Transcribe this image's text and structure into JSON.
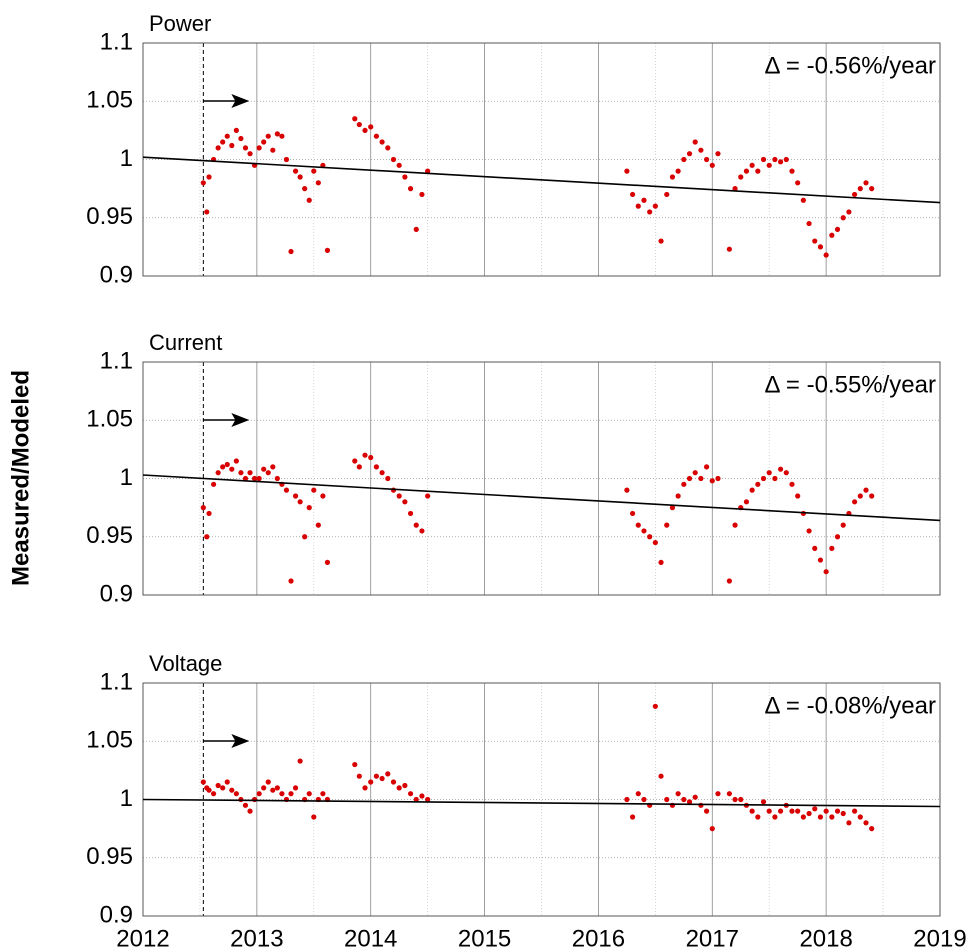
{
  "ylabel": "Measured/Modeled",
  "chart_data": [
    {
      "type": "scatter",
      "title": "Power",
      "annotation": "Δ = -0.56%/year",
      "color": "#d80000",
      "xlim": [
        2012,
        2019
      ],
      "xticks": [
        2012,
        2013,
        2014,
        2015,
        2016,
        2017,
        2018,
        2019
      ],
      "xminor": [
        2012.5,
        2013.5,
        2014.5,
        2015.5,
        2016.5,
        2017.5,
        2018.5
      ],
      "ylim": [
        0.9,
        1.1
      ],
      "yticks": [
        0.9,
        0.95,
        1,
        1.05,
        1.1
      ],
      "grid": true,
      "vline": 2012.53,
      "trend": {
        "color": "#000000",
        "x": [
          2012,
          2019
        ],
        "values": [
          1.002,
          0.963
        ]
      },
      "x": [
        2012.53,
        2012.56,
        2012.58,
        2012.62,
        2012.66,
        2012.7,
        2012.74,
        2012.78,
        2012.82,
        2012.86,
        2012.9,
        2012.94,
        2012.98,
        2013.02,
        2013.06,
        2013.1,
        2013.14,
        2013.18,
        2013.22,
        2013.26,
        2013.3,
        2013.34,
        2013.38,
        2013.42,
        2013.46,
        2013.5,
        2013.54,
        2013.58,
        2013.62,
        2013.86,
        2013.9,
        2013.95,
        2014.0,
        2014.05,
        2014.1,
        2014.15,
        2014.2,
        2014.25,
        2014.3,
        2014.35,
        2014.4,
        2014.45,
        2014.5,
        2016.25,
        2016.3,
        2016.35,
        2016.4,
        2016.45,
        2016.5,
        2016.55,
        2016.6,
        2016.65,
        2016.7,
        2016.75,
        2016.8,
        2016.85,
        2016.9,
        2016.95,
        2017.0,
        2017.05,
        2017.15,
        2017.2,
        2017.25,
        2017.3,
        2017.35,
        2017.4,
        2017.45,
        2017.5,
        2017.55,
        2017.6,
        2017.65,
        2017.7,
        2017.75,
        2017.8,
        2017.85,
        2017.9,
        2017.95,
        2018.0,
        2018.05,
        2018.1,
        2018.15,
        2018.2,
        2018.25,
        2018.3,
        2018.35,
        2018.4
      ],
      "values": [
        0.98,
        0.955,
        0.985,
        1.0,
        1.01,
        1.015,
        1.02,
        1.012,
        1.025,
        1.018,
        1.01,
        1.005,
        0.995,
        1.01,
        1.015,
        1.02,
        1.008,
        1.022,
        1.02,
        1.0,
        0.921,
        0.99,
        0.985,
        0.975,
        0.965,
        0.99,
        0.98,
        0.995,
        0.922,
        1.035,
        1.03,
        1.025,
        1.028,
        1.02,
        1.015,
        1.01,
        1.0,
        0.995,
        0.985,
        0.975,
        0.94,
        0.97,
        0.99,
        0.99,
        0.97,
        0.96,
        0.965,
        0.955,
        0.96,
        0.93,
        0.97,
        0.985,
        0.99,
        1.0,
        1.005,
        1.015,
        1.008,
        1.0,
        0.995,
        1.005,
        0.923,
        0.975,
        0.985,
        0.99,
        0.995,
        0.99,
        1.0,
        0.995,
        1.0,
        0.998,
        1.0,
        0.99,
        0.98,
        0.965,
        0.945,
        0.93,
        0.925,
        0.918,
        0.935,
        0.94,
        0.95,
        0.955,
        0.97,
        0.975,
        0.98,
        0.975
      ]
    },
    {
      "type": "scatter",
      "title": "Current",
      "annotation": "Δ = -0.55%/year",
      "color": "#d80000",
      "xlim": [
        2012,
        2019
      ],
      "xticks": [
        2012,
        2013,
        2014,
        2015,
        2016,
        2017,
        2018,
        2019
      ],
      "xminor": [
        2012.5,
        2013.5,
        2014.5,
        2015.5,
        2016.5,
        2017.5,
        2018.5
      ],
      "ylim": [
        0.9,
        1.1
      ],
      "yticks": [
        0.9,
        0.95,
        1,
        1.05,
        1.1
      ],
      "grid": true,
      "vline": 2012.53,
      "trend": {
        "color": "#000000",
        "x": [
          2012,
          2019
        ],
        "values": [
          1.003,
          0.964
        ]
      },
      "x": [
        2012.53,
        2012.56,
        2012.58,
        2012.62,
        2012.66,
        2012.7,
        2012.74,
        2012.78,
        2012.82,
        2012.86,
        2012.9,
        2012.94,
        2012.98,
        2013.02,
        2013.06,
        2013.1,
        2013.14,
        2013.18,
        2013.22,
        2013.26,
        2013.3,
        2013.34,
        2013.38,
        2013.42,
        2013.46,
        2013.5,
        2013.54,
        2013.58,
        2013.62,
        2013.86,
        2013.9,
        2013.95,
        2014.0,
        2014.05,
        2014.1,
        2014.15,
        2014.2,
        2014.25,
        2014.3,
        2014.35,
        2014.4,
        2014.45,
        2014.5,
        2016.25,
        2016.3,
        2016.35,
        2016.4,
        2016.45,
        2016.5,
        2016.55,
        2016.6,
        2016.65,
        2016.7,
        2016.75,
        2016.8,
        2016.85,
        2016.9,
        2016.95,
        2017.0,
        2017.05,
        2017.15,
        2017.2,
        2017.25,
        2017.3,
        2017.35,
        2017.4,
        2017.45,
        2017.5,
        2017.55,
        2017.6,
        2017.65,
        2017.7,
        2017.75,
        2017.8,
        2017.85,
        2017.9,
        2017.95,
        2018.0,
        2018.05,
        2018.1,
        2018.15,
        2018.2,
        2018.25,
        2018.3,
        2018.35,
        2018.4
      ],
      "values": [
        0.975,
        0.95,
        0.97,
        0.995,
        1.005,
        1.01,
        1.012,
        1.008,
        1.015,
        1.005,
        1.0,
        1.005,
        1.0,
        1.0,
        1.008,
        1.005,
        1.01,
        1.0,
        0.995,
        0.99,
        0.912,
        0.985,
        0.98,
        0.95,
        0.975,
        0.99,
        0.96,
        0.985,
        0.928,
        1.015,
        1.01,
        1.02,
        1.018,
        1.01,
        1.005,
        1.0,
        0.99,
        0.985,
        0.98,
        0.97,
        0.96,
        0.955,
        0.985,
        0.99,
        0.97,
        0.96,
        0.955,
        0.95,
        0.945,
        0.928,
        0.96,
        0.975,
        0.985,
        0.995,
        1.0,
        1.005,
        1.0,
        1.01,
        0.998,
        1.0,
        0.912,
        0.96,
        0.975,
        0.98,
        0.99,
        0.995,
        1.0,
        1.005,
        1.0,
        1.008,
        1.005,
        0.995,
        0.985,
        0.97,
        0.955,
        0.94,
        0.93,
        0.92,
        0.94,
        0.95,
        0.96,
        0.97,
        0.98,
        0.985,
        0.99,
        0.985
      ]
    },
    {
      "type": "scatter",
      "title": "Voltage",
      "annotation": "Δ = -0.08%/year",
      "color": "#d80000",
      "xlim": [
        2012,
        2019
      ],
      "xticks": [
        2012,
        2013,
        2014,
        2015,
        2016,
        2017,
        2018,
        2019
      ],
      "xminor": [
        2012.5,
        2013.5,
        2014.5,
        2015.5,
        2016.5,
        2017.5,
        2018.5
      ],
      "ylim": [
        0.9,
        1.1
      ],
      "yticks": [
        0.9,
        0.95,
        1,
        1.05,
        1.1
      ],
      "grid": true,
      "vline": 2012.53,
      "trend": {
        "color": "#000000",
        "x": [
          2012,
          2019
        ],
        "values": [
          1.0,
          0.994
        ]
      },
      "x": [
        2012.53,
        2012.56,
        2012.58,
        2012.62,
        2012.66,
        2012.7,
        2012.74,
        2012.78,
        2012.82,
        2012.86,
        2012.9,
        2012.94,
        2012.98,
        2013.02,
        2013.06,
        2013.1,
        2013.14,
        2013.18,
        2013.22,
        2013.26,
        2013.3,
        2013.34,
        2013.38,
        2013.42,
        2013.46,
        2013.5,
        2013.54,
        2013.58,
        2013.62,
        2013.86,
        2013.9,
        2013.95,
        2014.0,
        2014.05,
        2014.1,
        2014.15,
        2014.2,
        2014.25,
        2014.3,
        2014.35,
        2014.4,
        2014.45,
        2014.5,
        2016.25,
        2016.3,
        2016.35,
        2016.4,
        2016.45,
        2016.5,
        2016.55,
        2016.6,
        2016.65,
        2016.7,
        2016.75,
        2016.8,
        2016.85,
        2016.9,
        2016.95,
        2017.0,
        2017.05,
        2017.15,
        2017.2,
        2017.25,
        2017.3,
        2017.35,
        2017.4,
        2017.45,
        2017.5,
        2017.55,
        2017.6,
        2017.65,
        2017.7,
        2017.75,
        2017.8,
        2017.85,
        2017.9,
        2017.95,
        2018.0,
        2018.05,
        2018.1,
        2018.15,
        2018.2,
        2018.25,
        2018.3,
        2018.35,
        2018.4
      ],
      "values": [
        1.015,
        1.01,
        1.008,
        1.005,
        1.012,
        1.01,
        1.015,
        1.008,
        1.005,
        1.0,
        0.995,
        0.99,
        1.0,
        1.005,
        1.01,
        1.015,
        1.008,
        1.01,
        1.005,
        1.0,
        1.005,
        1.01,
        1.033,
        1.0,
        1.005,
        0.985,
        1.0,
        1.005,
        1.0,
        1.03,
        1.02,
        1.01,
        1.015,
        1.02,
        1.018,
        1.022,
        1.015,
        1.01,
        1.012,
        1.005,
        1.0,
        1.003,
        1.0,
        1.0,
        0.985,
        1.005,
        1.0,
        0.995,
        1.08,
        1.02,
        1.0,
        0.995,
        1.005,
        1.0,
        0.998,
        1.002,
        0.995,
        0.99,
        0.975,
        1.005,
        1.005,
        1.0,
        1.0,
        0.995,
        0.99,
        0.985,
        0.998,
        0.99,
        0.985,
        0.99,
        0.995,
        0.99,
        0.99,
        0.985,
        0.988,
        0.992,
        0.985,
        0.99,
        0.985,
        0.99,
        0.988,
        0.98,
        0.99,
        0.985,
        0.98,
        0.975
      ]
    }
  ]
}
